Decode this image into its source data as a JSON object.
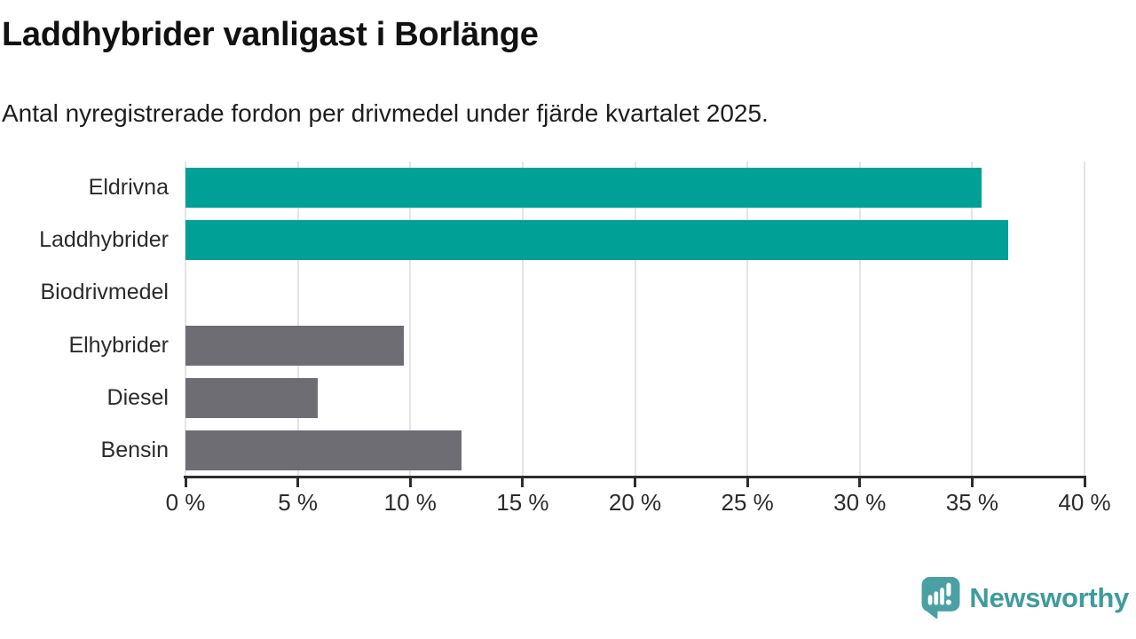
{
  "chart_data": {
    "type": "bar",
    "orientation": "horizontal",
    "title": "Laddhybrider vanligast i Borlänge",
    "subtitle": "Antal nyregistrerade fordon per drivmedel under fjärde kvartalet 2025.",
    "categories": [
      "Eldrivna",
      "Laddhybrider",
      "Biodrivmedel",
      "Elhybrider",
      "Diesel",
      "Bensin"
    ],
    "values": [
      35.4,
      36.6,
      0,
      9.7,
      5.9,
      12.3
    ],
    "unit": "%",
    "xlim": [
      0,
      40
    ],
    "xticks": [
      0,
      5,
      10,
      15,
      20,
      25,
      30,
      35,
      40
    ],
    "xtick_labels": [
      "0 %",
      "5 %",
      "10 %",
      "15 %",
      "20 %",
      "25 %",
      "30 %",
      "35 %",
      "40 %"
    ],
    "bar_colors": [
      "#00A096",
      "#00A096",
      "#6D6D73",
      "#6D6D73",
      "#6D6D73",
      "#6D6D73"
    ],
    "grid": "vertical-only",
    "legend": "none",
    "accent_color": "#00A096",
    "muted_color": "#6D6D73",
    "gridline_color": "#e4e4e4",
    "axis_color": "#2d2d2d"
  },
  "footer": {
    "brand": "Newsworthy",
    "brand_color": "#3e9b9e",
    "logo_icon": "newsworthy-speech-bubble-chart-icon"
  }
}
